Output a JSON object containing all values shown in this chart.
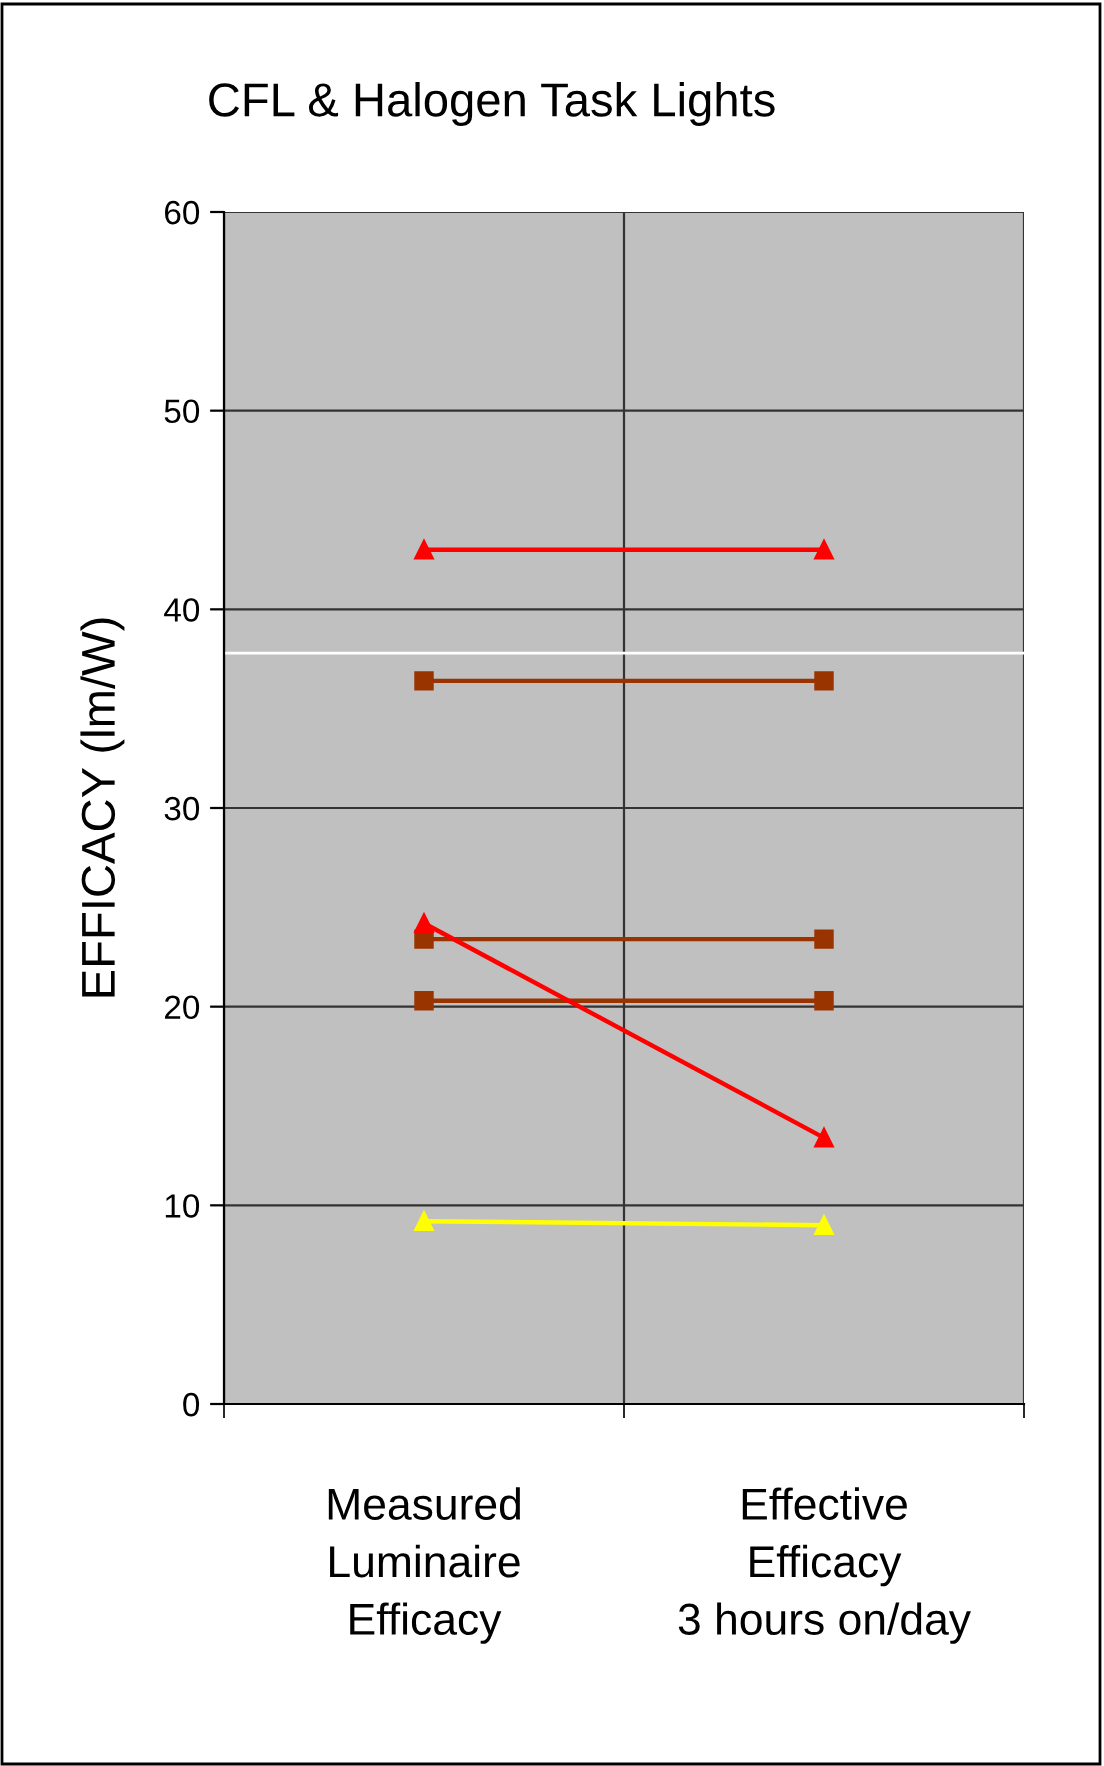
{
  "chart_data": {
    "type": "line",
    "title": "CFL & Halogen Task Lights",
    "ylabel": "EFFICACY (lm/W)",
    "categories": [
      "Measured\nLuminaire\nEfficacy",
      "Effective\nEfficacy\n3 hours on/day"
    ],
    "series": [
      {
        "color": "#ff0000",
        "marker": "triangle",
        "values": [
          43,
          43
        ]
      },
      {
        "color": "#993300",
        "marker": "square",
        "values": [
          36.4,
          36.4
        ]
      },
      {
        "color": "#993300",
        "marker": "square",
        "values": [
          23.4,
          23.4
        ]
      },
      {
        "color": "#993300",
        "marker": "square",
        "values": [
          20.3,
          20.3
        ]
      },
      {
        "color": "#ff0000",
        "marker": "triangle",
        "values": [
          24.2,
          13.4
        ]
      },
      {
        "color": "#ffff00",
        "marker": "triangle",
        "values": [
          9.2,
          9.0
        ]
      }
    ],
    "ref_lines": [
      {
        "axis": "y",
        "value": 37.8,
        "color": "#ffffff"
      }
    ],
    "ylim": [
      0,
      60
    ],
    "yticks": [
      0,
      10,
      20,
      30,
      40,
      50,
      60
    ],
    "grid": true,
    "legend": false
  }
}
